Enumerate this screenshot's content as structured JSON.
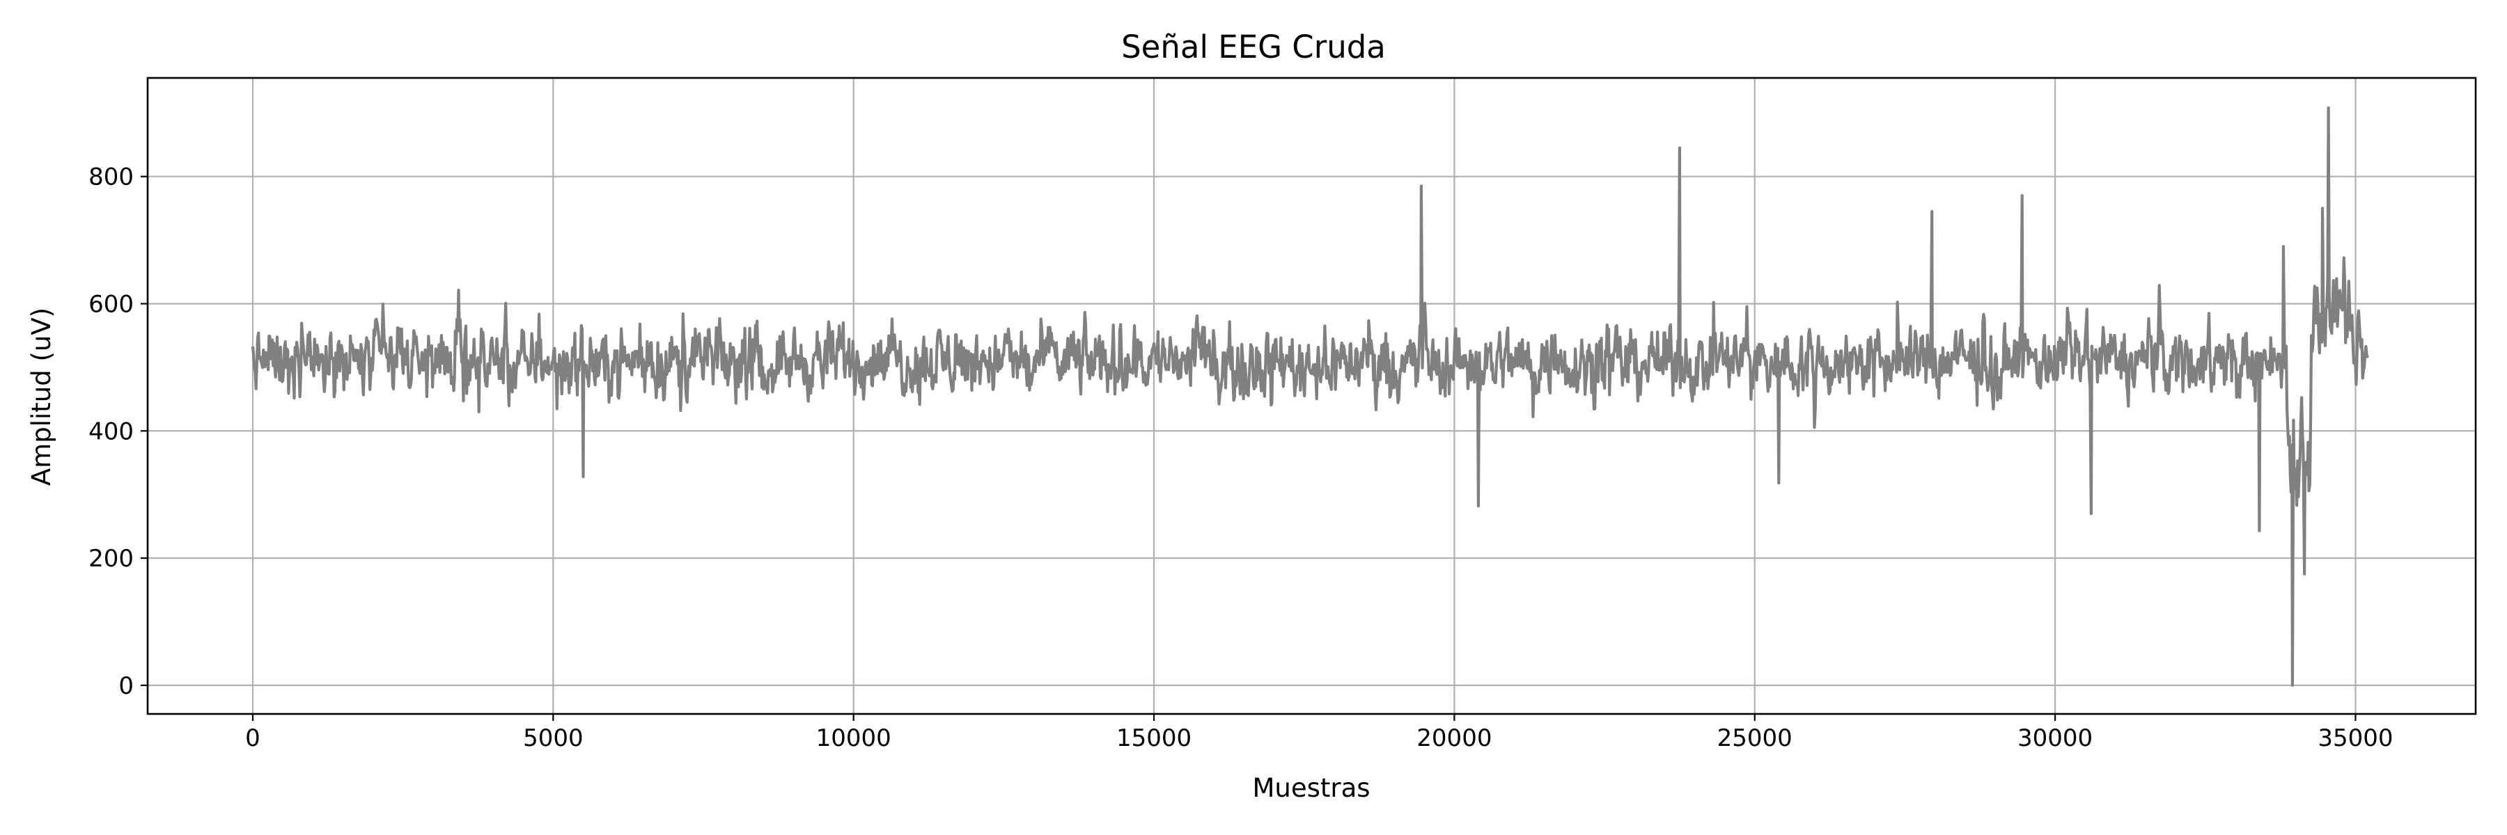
{
  "chart_data": {
    "type": "line",
    "title": "Señal EEG Cruda",
    "xlabel": "Muestras",
    "ylabel": "Amplitud (uV)",
    "xlim": [
      -1750,
      37000
    ],
    "ylim": [
      -45,
      955
    ],
    "xticks": [
      0,
      5000,
      10000,
      15000,
      20000,
      25000,
      30000,
      35000
    ],
    "xtick_labels": [
      "0",
      "5000",
      "10000",
      "15000",
      "20000",
      "25000",
      "30000",
      "35000"
    ],
    "yticks": [
      0,
      200,
      400,
      600,
      800
    ],
    "ytick_labels": [
      "0",
      "200",
      "400",
      "600",
      "800"
    ],
    "grid": true,
    "line_color": "#808080",
    "series": [
      {
        "x_start": 0,
        "x_end": 35200,
        "baseline": 510,
        "typical_range": [
          380,
          640
        ],
        "noise_amplitude": 60,
        "peaks": [
          {
            "x": 19450,
            "y": 785
          },
          {
            "x": 23750,
            "y": 845
          },
          {
            "x": 27950,
            "y": 745
          },
          {
            "x": 29450,
            "y": 770
          },
          {
            "x": 33800,
            "y": 690
          },
          {
            "x": 34550,
            "y": 908
          },
          {
            "x": 34450,
            "y": 750
          }
        ],
        "troughs": [
          {
            "x": 5500,
            "y": 328
          },
          {
            "x": 20400,
            "y": 282
          },
          {
            "x": 25400,
            "y": 318
          },
          {
            "x": 30600,
            "y": 270
          },
          {
            "x": 33400,
            "y": 243
          },
          {
            "x": 33950,
            "y": 0
          },
          {
            "x": 34150,
            "y": 175
          }
        ]
      }
    ]
  }
}
